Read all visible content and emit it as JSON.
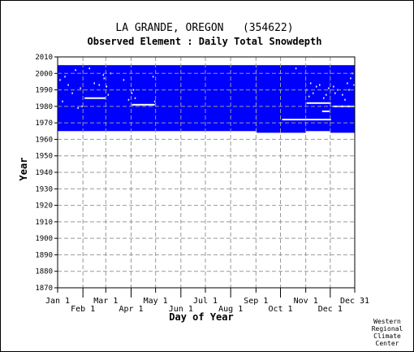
{
  "chart_data": {
    "type": "heatmap",
    "title": "LA GRANDE, OREGON   (354622)",
    "subtitle": "Observed Element : Daily Total Snowdepth",
    "xlabel": "Day of Year",
    "ylabel": "Year",
    "ylim": [
      1870,
      2010
    ],
    "xlim": [
      1,
      365
    ],
    "grid": true,
    "fill_color": "#0000ff",
    "grid_color": "#999999",
    "yticks": [
      2010,
      2000,
      1990,
      1980,
      1970,
      1960,
      1950,
      1940,
      1930,
      1920,
      1910,
      1900,
      1890,
      1880,
      1870
    ],
    "month_ticks_upper": [
      {
        "label": "Jan 1",
        "day": 1
      },
      {
        "label": "Mar 1",
        "day": 60
      },
      {
        "label": "May 1",
        "day": 121
      },
      {
        "label": "Jul 1",
        "day": 182
      },
      {
        "label": "Sep 1",
        "day": 244
      },
      {
        "label": "Nov 1",
        "day": 305
      },
      {
        "label": "Dec 31",
        "day": 365
      }
    ],
    "month_ticks_lower": [
      {
        "label": "Feb 1",
        "day": 32
      },
      {
        "label": "Apr 1",
        "day": 91
      },
      {
        "label": "Jun 1",
        "day": 152
      },
      {
        "label": "Aug 1",
        "day": 213
      },
      {
        "label": "Oct 1",
        "day": 274
      },
      {
        "label": "Dec 1",
        "day": 335
      }
    ],
    "record_blocks": [
      {
        "start_day": 1,
        "end_day": 245,
        "year_from": 1965,
        "year_to": 2005
      },
      {
        "start_day": 245,
        "end_day": 305,
        "year_from": 1964,
        "year_to": 2005
      },
      {
        "start_day": 305,
        "end_day": 335,
        "year_from": 1965,
        "year_to": 2005
      },
      {
        "start_day": 335,
        "end_day": 365,
        "year_from": 1964,
        "year_to": 2005
      }
    ],
    "gap_lines": [
      {
        "start_day": 34,
        "end_day": 60,
        "year": 1985
      },
      {
        "start_day": 92,
        "end_day": 120,
        "year": 1981
      },
      {
        "start_day": 276,
        "end_day": 336,
        "year": 1972
      },
      {
        "start_day": 306,
        "end_day": 336,
        "year": 1982
      },
      {
        "start_day": 325,
        "end_day": 334,
        "year": 1977
      },
      {
        "start_day": 338,
        "end_day": 365,
        "year": 1980
      }
    ],
    "gap_points": [
      {
        "day": 4,
        "year": 1996
      },
      {
        "day": 7,
        "year": 1983
      },
      {
        "day": 10,
        "year": 1998
      },
      {
        "day": 14,
        "year": 1993
      },
      {
        "day": 19,
        "year": 1988
      },
      {
        "day": 23,
        "year": 2002
      },
      {
        "day": 26,
        "year": 1979
      },
      {
        "day": 29,
        "year": 1991
      },
      {
        "day": 31,
        "year": 1980
      },
      {
        "day": 40,
        "year": 2003
      },
      {
        "day": 46,
        "year": 1994
      },
      {
        "day": 52,
        "year": 1993
      },
      {
        "day": 57,
        "year": 1999
      },
      {
        "day": 58,
        "year": 1997
      },
      {
        "day": 61,
        "year": 1992
      },
      {
        "day": 63,
        "year": 1987
      },
      {
        "day": 66,
        "year": 2000
      },
      {
        "day": 82,
        "year": 1996
      },
      {
        "day": 88,
        "year": 1984
      },
      {
        "day": 92,
        "year": 1988
      },
      {
        "day": 94,
        "year": 1990
      },
      {
        "day": 96,
        "year": 1985
      },
      {
        "day": 118,
        "year": 1998
      },
      {
        "day": 120,
        "year": 1983
      },
      {
        "day": 293,
        "year": 2003
      },
      {
        "day": 306,
        "year": 1990
      },
      {
        "day": 309,
        "year": 1986
      },
      {
        "day": 311,
        "year": 1994
      },
      {
        "day": 314,
        "year": 1988
      },
      {
        "day": 318,
        "year": 1992
      },
      {
        "day": 322,
        "year": 1993
      },
      {
        "day": 327,
        "year": 1985
      },
      {
        "day": 330,
        "year": 1987
      },
      {
        "day": 333,
        "year": 1991
      },
      {
        "day": 339,
        "year": 1992
      },
      {
        "day": 341,
        "year": 1988
      },
      {
        "day": 344,
        "year": 1990
      },
      {
        "day": 350,
        "year": 1987
      },
      {
        "day": 353,
        "year": 1984
      },
      {
        "day": 356,
        "year": 1994
      },
      {
        "day": 358,
        "year": 1990
      },
      {
        "day": 360,
        "year": 1997
      },
      {
        "day": 362,
        "year": 2000
      },
      {
        "day": 364,
        "year": 1993
      }
    ],
    "credit": [
      "Western",
      "Regional",
      "Climate",
      "Center"
    ]
  }
}
